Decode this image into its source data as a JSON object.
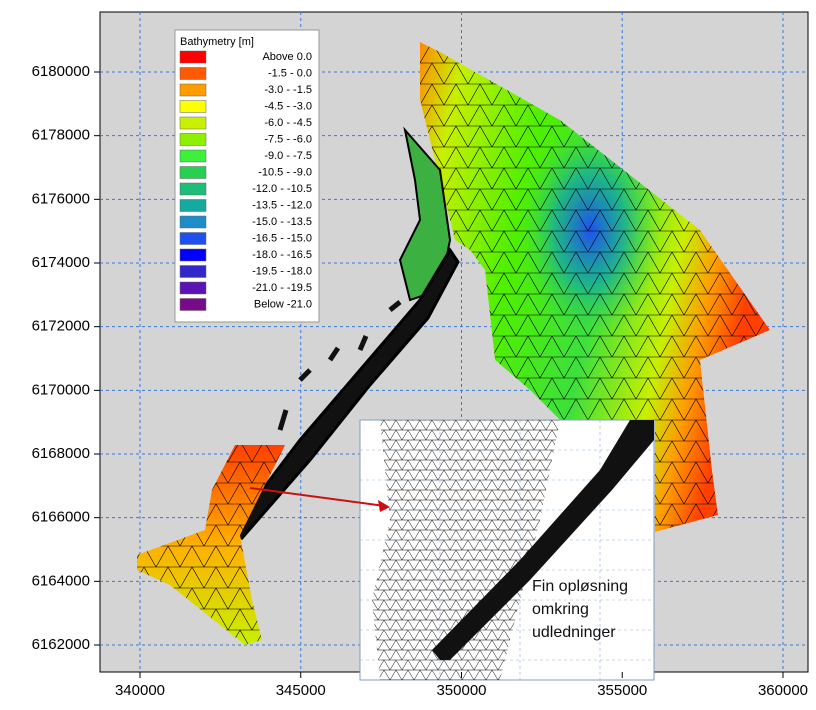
{
  "axes": {
    "xlim": [
      338756,
      360778
    ],
    "ylim": [
      6161152,
      6181885
    ],
    "xticks": [
      340000,
      345000,
      350000,
      355000,
      360000
    ],
    "yticks": [
      6162000,
      6164000,
      6166000,
      6168000,
      6170000,
      6172000,
      6174000,
      6176000,
      6178000,
      6180000
    ]
  },
  "legend": {
    "title": "Bathymetry [m]",
    "entries": [
      {
        "label": "Above   0.0",
        "color": "#ff0000"
      },
      {
        "label": "-1.5 -   0.0",
        "color": "#ff5a00"
      },
      {
        "label": "-3.0 -  -1.5",
        "color": "#ff9c00"
      },
      {
        "label": "-4.5 -  -3.0",
        "color": "#ffff00"
      },
      {
        "label": "-6.0 -  -4.5",
        "color": "#c8f000"
      },
      {
        "label": "-7.5 -  -6.0",
        "color": "#8cf000"
      },
      {
        "label": "-9.0 -  -7.5",
        "color": "#3cf03c"
      },
      {
        "label": "-10.5 -  -9.0",
        "color": "#28d050"
      },
      {
        "label": "-12.0 - -10.5",
        "color": "#1ebe78"
      },
      {
        "label": "-13.5 - -12.0",
        "color": "#14aaa0"
      },
      {
        "label": "-15.0 - -13.5",
        "color": "#1e8cc8"
      },
      {
        "label": "-16.5 - -15.0",
        "color": "#1e50f0"
      },
      {
        "label": "-18.0 - -16.5",
        "color": "#0000ff"
      },
      {
        "label": "-19.5 - -18.0",
        "color": "#3228c8"
      },
      {
        "label": "-21.0 - -19.5",
        "color": "#5a14b4"
      },
      {
        "label": "Below -21.0",
        "color": "#780a8c"
      }
    ]
  },
  "annotation": {
    "lines": [
      "Fin opløsning",
      "omkring",
      "udledninger"
    ]
  }
}
